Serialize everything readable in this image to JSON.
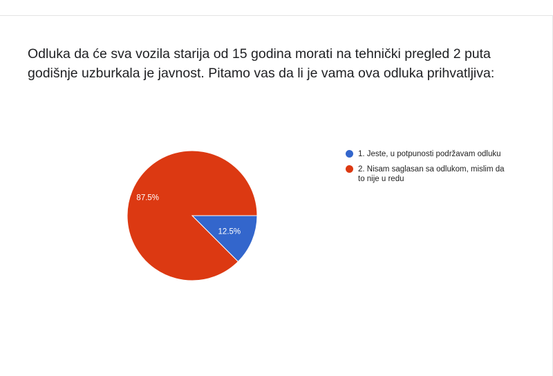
{
  "question": "Odluka da će sva vozila starija od 15 godina morati na tehnički pregled 2 puta godišnje uzburkala je javnost. Pitamo vas da li je vama ova odluka prihvatljiva:",
  "chart_data": {
    "type": "pie",
    "slices": [
      {
        "label": "1. Jeste, u potpunosti podržavam odluku",
        "value": 12.5,
        "display": "12.5%",
        "color": "#3366cc"
      },
      {
        "label": "2. Nisam saglasan sa odlukom, mislim da to nije u redu",
        "value": 87.5,
        "display": "87.5%",
        "color": "#dc3912"
      }
    ],
    "legend_position": "right"
  }
}
